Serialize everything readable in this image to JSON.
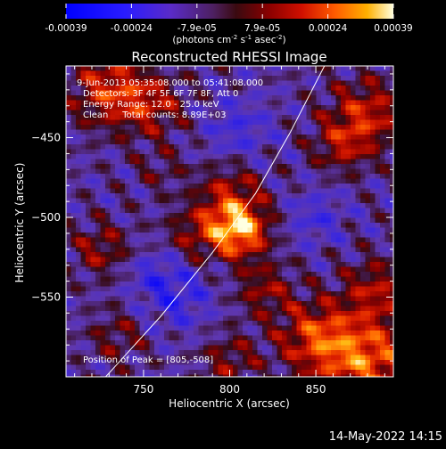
{
  "chart_data": {
    "type": "heatmap",
    "title": "Reconstructed RHESSI Image",
    "xlabel": "Heliocentric X (arcsec)",
    "ylabel": "Heliocentric Y (arcsec)",
    "xlim": [
      705,
      895
    ],
    "ylim": [
      -600,
      -405
    ],
    "xticks": [
      750,
      800,
      850
    ],
    "yticks": [
      -450,
      -500,
      -550
    ],
    "colorbar": {
      "min": -0.00039,
      "max": 0.00039,
      "ticks": [
        "-0.00039",
        "-0.00024",
        "-7.9e-05",
        "7.9e-05",
        "0.00024",
        "0.00039"
      ],
      "unit_label": "(photons cm",
      "unit_sup1": "-2",
      "unit_mid": " s",
      "unit_sup2": "-1",
      "unit_mid2": " asec",
      "unit_sup3": "-2",
      "unit_end": ")"
    },
    "annotations": {
      "time_range": "9-Jun-2013 05:35:08.000 to 05:41:08.000",
      "detectors": "Detectors: 3F 4F 5F 6F 7F 8F, Att 0",
      "energy_range": "Energy Range: 12.0 - 25.0 keV",
      "clean_counts": "Clean     Total counts: 8.89E+03",
      "peak": "Position of Peak = [805,-508]"
    },
    "peak": {
      "x": 805,
      "y": -508
    },
    "limb_curve": [
      [
        728,
        -600
      ],
      [
        760,
        -562
      ],
      [
        790,
        -522
      ],
      [
        815,
        -485
      ],
      [
        835,
        -447
      ],
      [
        855,
        -405
      ]
    ]
  },
  "footer": {
    "timestamp": "14-May-2022 14:15"
  }
}
